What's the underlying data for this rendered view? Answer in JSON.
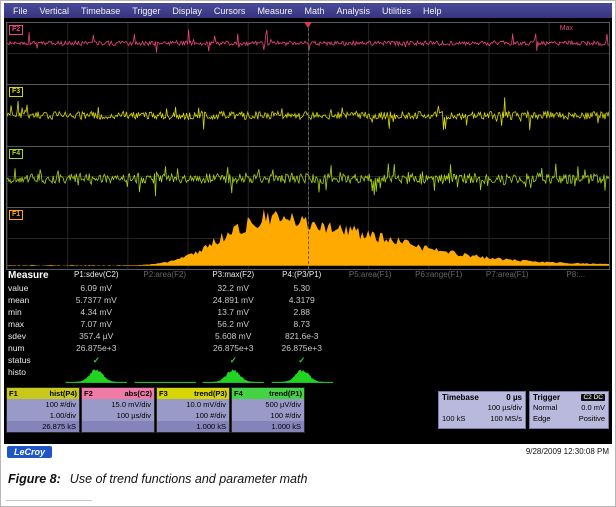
{
  "menu": {
    "items": [
      "File",
      "Vertical",
      "Timebase",
      "Trigger",
      "Display",
      "Cursors",
      "Measure",
      "Math",
      "Analysis",
      "Utilities",
      "Help"
    ]
  },
  "grid": {
    "trace_labels": {
      "f2": "F2",
      "f3": "F3",
      "f4": "F4",
      "f1": "F1"
    },
    "annotation_max": "Max"
  },
  "colors": {
    "f1": "#ffaa00",
    "f2": "#e8437c",
    "f3": "#d6d600",
    "f4": "#a6d414",
    "mini_hist": "#22d322",
    "check_green": "#2ed32e",
    "menu_bg": "#3c3c82"
  },
  "measure": {
    "title": "Measure",
    "rows": [
      "value",
      "mean",
      "min",
      "max",
      "sdev",
      "num",
      "status",
      "histo"
    ],
    "check": "✓",
    "p1": {
      "header": "P1:sdev(C2)",
      "value": "6.09 mV",
      "mean": "5.7377 mV",
      "min": "4.34 mV",
      "max": "7.07 mV",
      "sdev": "357.4 µV",
      "num": "26.875e+3"
    },
    "p2": {
      "header": "P2:area(F2)"
    },
    "p3": {
      "header": "P3:max(F2)",
      "value": "32.2 mV",
      "mean": "24.891 mV",
      "min": "13.7 mV",
      "max": "56.2 mV",
      "sdev": "5.608 mV",
      "num": "26.875e+3"
    },
    "p4": {
      "header": "P4:(P3/P1)",
      "value": "5.30",
      "mean": "4.3179",
      "min": "2.88",
      "max": "8.73",
      "sdev": "821.6e-3",
      "num": "26.875e+3"
    },
    "p5": {
      "header": "P5:area(F1)"
    },
    "p6": {
      "header": "P6:range(F1)"
    },
    "p7": {
      "header": "P7:area(F1)"
    },
    "p8": {
      "header": "P8:..."
    }
  },
  "descriptors": {
    "f1": {
      "id": "F1",
      "func": "hist(P4)",
      "l1": "100 #/div",
      "l2": "1.00/div",
      "l3": "26.875 kS"
    },
    "f2": {
      "id": "F2",
      "func": "abs(C2)",
      "l1": "15.0 mV/div",
      "l2": "100 µs/div",
      "l3": ""
    },
    "f3": {
      "id": "F3",
      "func": "trend(P3)",
      "l1": "10.0 mV/div",
      "l2": "100 #/div",
      "l3": "1.000 kS"
    },
    "f4": {
      "id": "F4",
      "func": "trend(P1)",
      "l1": "500 µV/div",
      "l2": "100 #/div",
      "l3": "1.000 kS"
    }
  },
  "timebase": {
    "title": "Timebase",
    "offset": "0 µs",
    "l1": "100 µs/div",
    "l2a": "100 kS",
    "l2b": "100 MS/s"
  },
  "trigger": {
    "title": "Trigger",
    "source": "C2 DC",
    "l1a": "Normal",
    "l1b": "0.0 mV",
    "l2a": "Edge",
    "l2b": "Positive"
  },
  "status": {
    "brand": "LeCroy",
    "timestamp": "9/28/2009 12:30:08 PM"
  },
  "caption": {
    "label": "Figure 8:",
    "text": "Use of trend functions and parameter math"
  }
}
